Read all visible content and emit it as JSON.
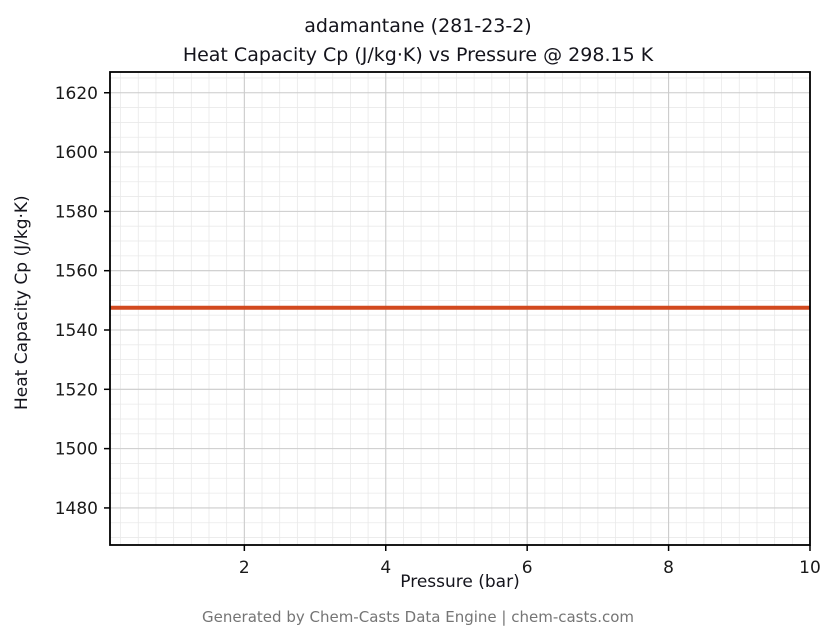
{
  "title": {
    "line1": "adamantane (281-23-2)",
    "line2": "Heat Capacity Cp (J/kg·K) vs Pressure @ 298.15 K"
  },
  "footer": "Generated by Chem-Casts Data Engine | chem-casts.com",
  "chart_data": {
    "type": "line",
    "title": "adamantane (281-23-2) — Heat Capacity Cp (J/kg·K) vs Pressure @ 298.15 K",
    "xlabel": "Pressure (bar)",
    "ylabel": "Heat Capacity Cp (J/kg·K)",
    "x": [
      0.1,
      10
    ],
    "series": [
      {
        "name": "Heat Capacity Cp",
        "values": [
          1547.5,
          1547.5
        ]
      }
    ],
    "constant_value": 1547.5,
    "xlim": [
      0.1,
      10
    ],
    "ylim": [
      1467.5,
      1627
    ],
    "xticks": [
      2,
      4,
      6,
      8,
      10
    ],
    "yticks": [
      1480,
      1500,
      1520,
      1540,
      1560,
      1580,
      1600,
      1620
    ],
    "x_minor_step": 0.25,
    "y_minor_step": 5,
    "grid": true,
    "legend": "none",
    "line_color": "#d2491e",
    "line_width": 4,
    "colors": {
      "major_grid": "#cccccc",
      "minor_grid": "#e9e9e9",
      "axis_border": "#000000",
      "tick_text": "#1a1a1a"
    }
  }
}
